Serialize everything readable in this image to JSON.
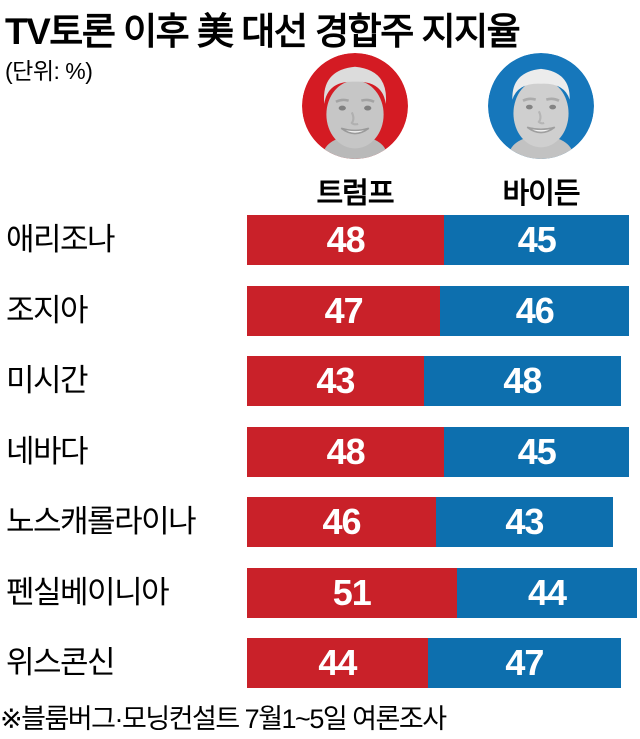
{
  "header": {
    "title": "TV토론 이후 美 대선 경합주 지지율",
    "unit_note": "(단위: %)"
  },
  "candidates": {
    "trump": {
      "name": "트럼프",
      "ring_color": "#d41b23"
    },
    "biden": {
      "name": "바이든",
      "ring_color": "#1677bb"
    }
  },
  "chart_data": {
    "type": "bar",
    "orientation": "horizontal-stacked",
    "title": "TV토론 이후 美 대선 경합주 지지율",
    "unit": "%",
    "categories": [
      "애리조나",
      "조지아",
      "미시간",
      "네바다",
      "노스캐롤라이나",
      "펜실베이니아",
      "위스콘신"
    ],
    "series": [
      {
        "name": "트럼프",
        "color": "#c92129",
        "values": [
          48,
          47,
          43,
          48,
          46,
          51,
          44
        ]
      },
      {
        "name": "바이든",
        "color": "#0d6fae",
        "values": [
          45,
          46,
          48,
          45,
          43,
          44,
          47
        ]
      }
    ],
    "value_labels_shown": true,
    "value_label_color": "#ffffff",
    "axis_hidden": true,
    "source_note": "※블룸버그·모닝컨설트 7월1~5일 여론조사"
  },
  "footer": {
    "note": "※블룸버그·모닝컨설트 7월1~5일 여론조사"
  }
}
